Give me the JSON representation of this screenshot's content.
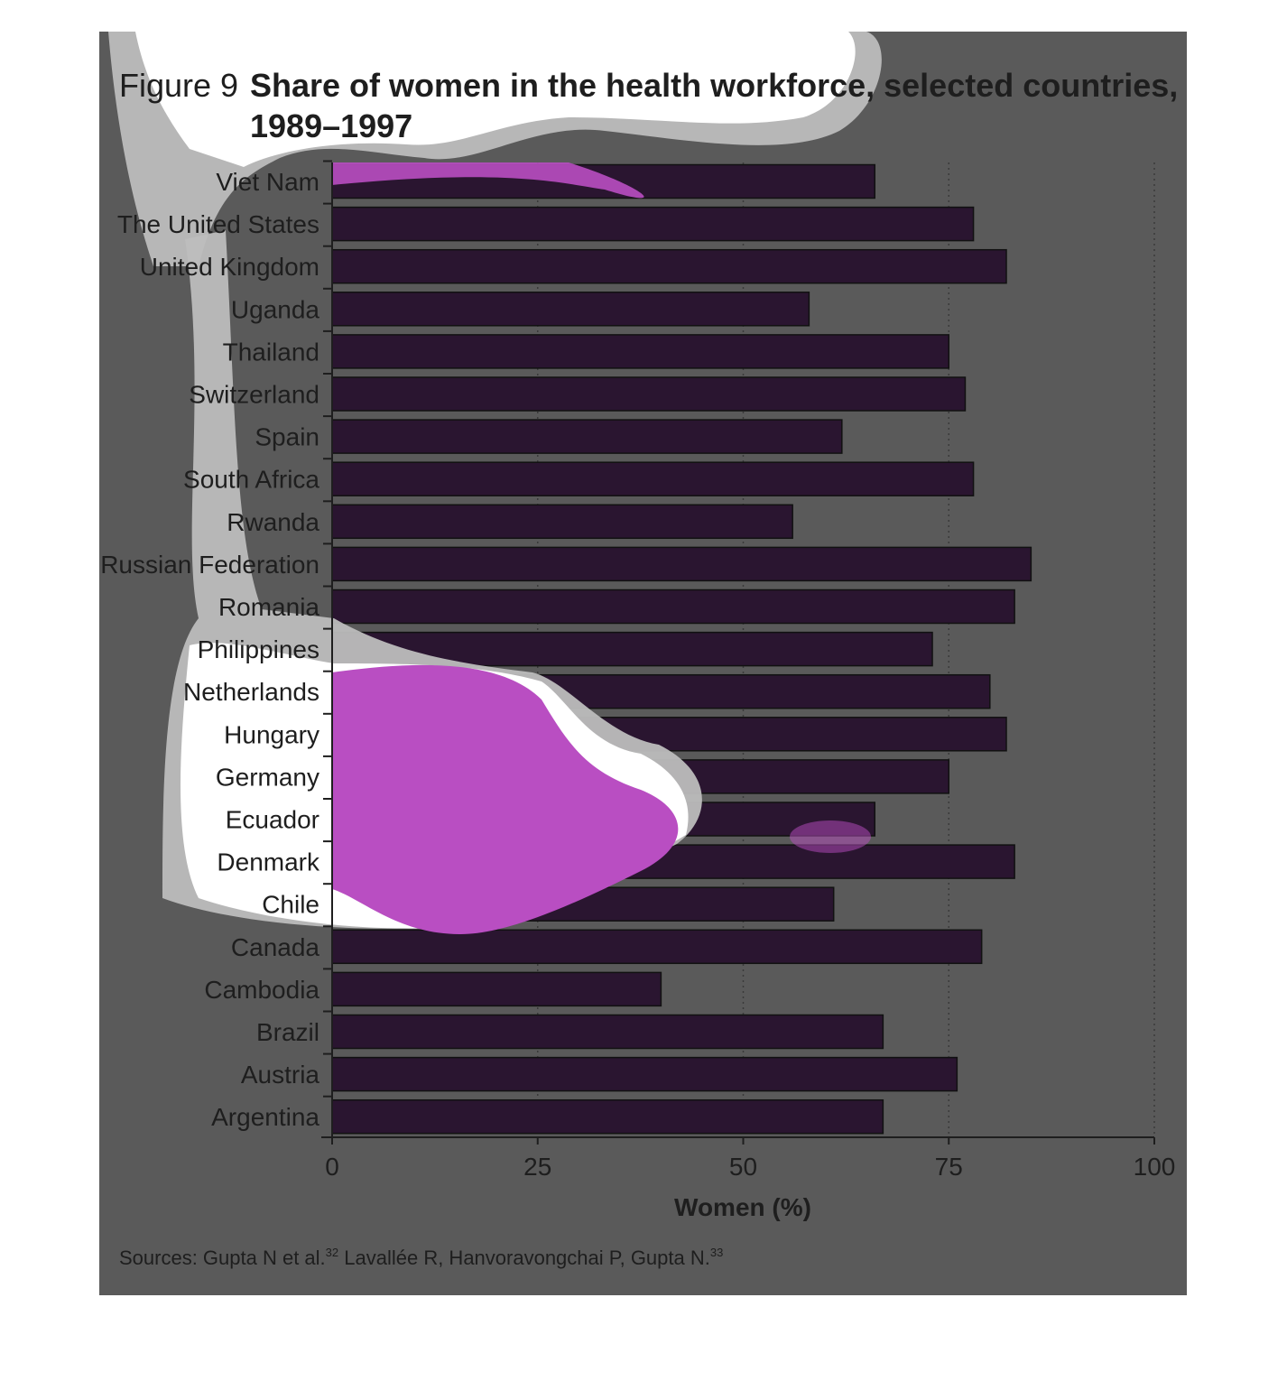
{
  "chart_data": {
    "type": "bar",
    "orientation": "horizontal",
    "figure_label": "Figure 9",
    "title": "Share of women in the health workforce, selected countries,",
    "title_line2": "1989–1997",
    "categories": [
      "Viet Nam",
      "The United States",
      "United Kingdom",
      "Uganda",
      "Thailand",
      "Switzerland",
      "Spain",
      "South Africa",
      "Rwanda",
      "Russian Federation",
      "Romania",
      "Philippines",
      "Netherlands",
      "Hungary",
      "Germany",
      "Ecuador",
      "Denmark",
      "Chile",
      "Canada",
      "Cambodia",
      "Brazil",
      "Austria",
      "Argentina"
    ],
    "values": [
      66,
      78,
      82,
      58,
      75,
      77,
      62,
      78,
      56,
      85,
      83,
      73,
      80,
      82,
      75,
      66,
      83,
      61,
      79,
      40,
      67,
      76,
      67
    ],
    "xlabel": "Women (%)",
    "ylabel": "",
    "xlim": [
      0,
      100
    ],
    "xticks": [
      "0",
      "25",
      "50",
      "75",
      "100"
    ],
    "grid": "vertical dotted",
    "source": "Sources: Gupta N et al.",
    "source_sup1": "32",
    "source_part2": " Lavallée R, Hanvoravongchai P, Gupta N.",
    "source_sup2": "33",
    "colors": {
      "bar": "#2a1530",
      "background": "#5a5a5a",
      "text": "#1e1e1e"
    }
  }
}
